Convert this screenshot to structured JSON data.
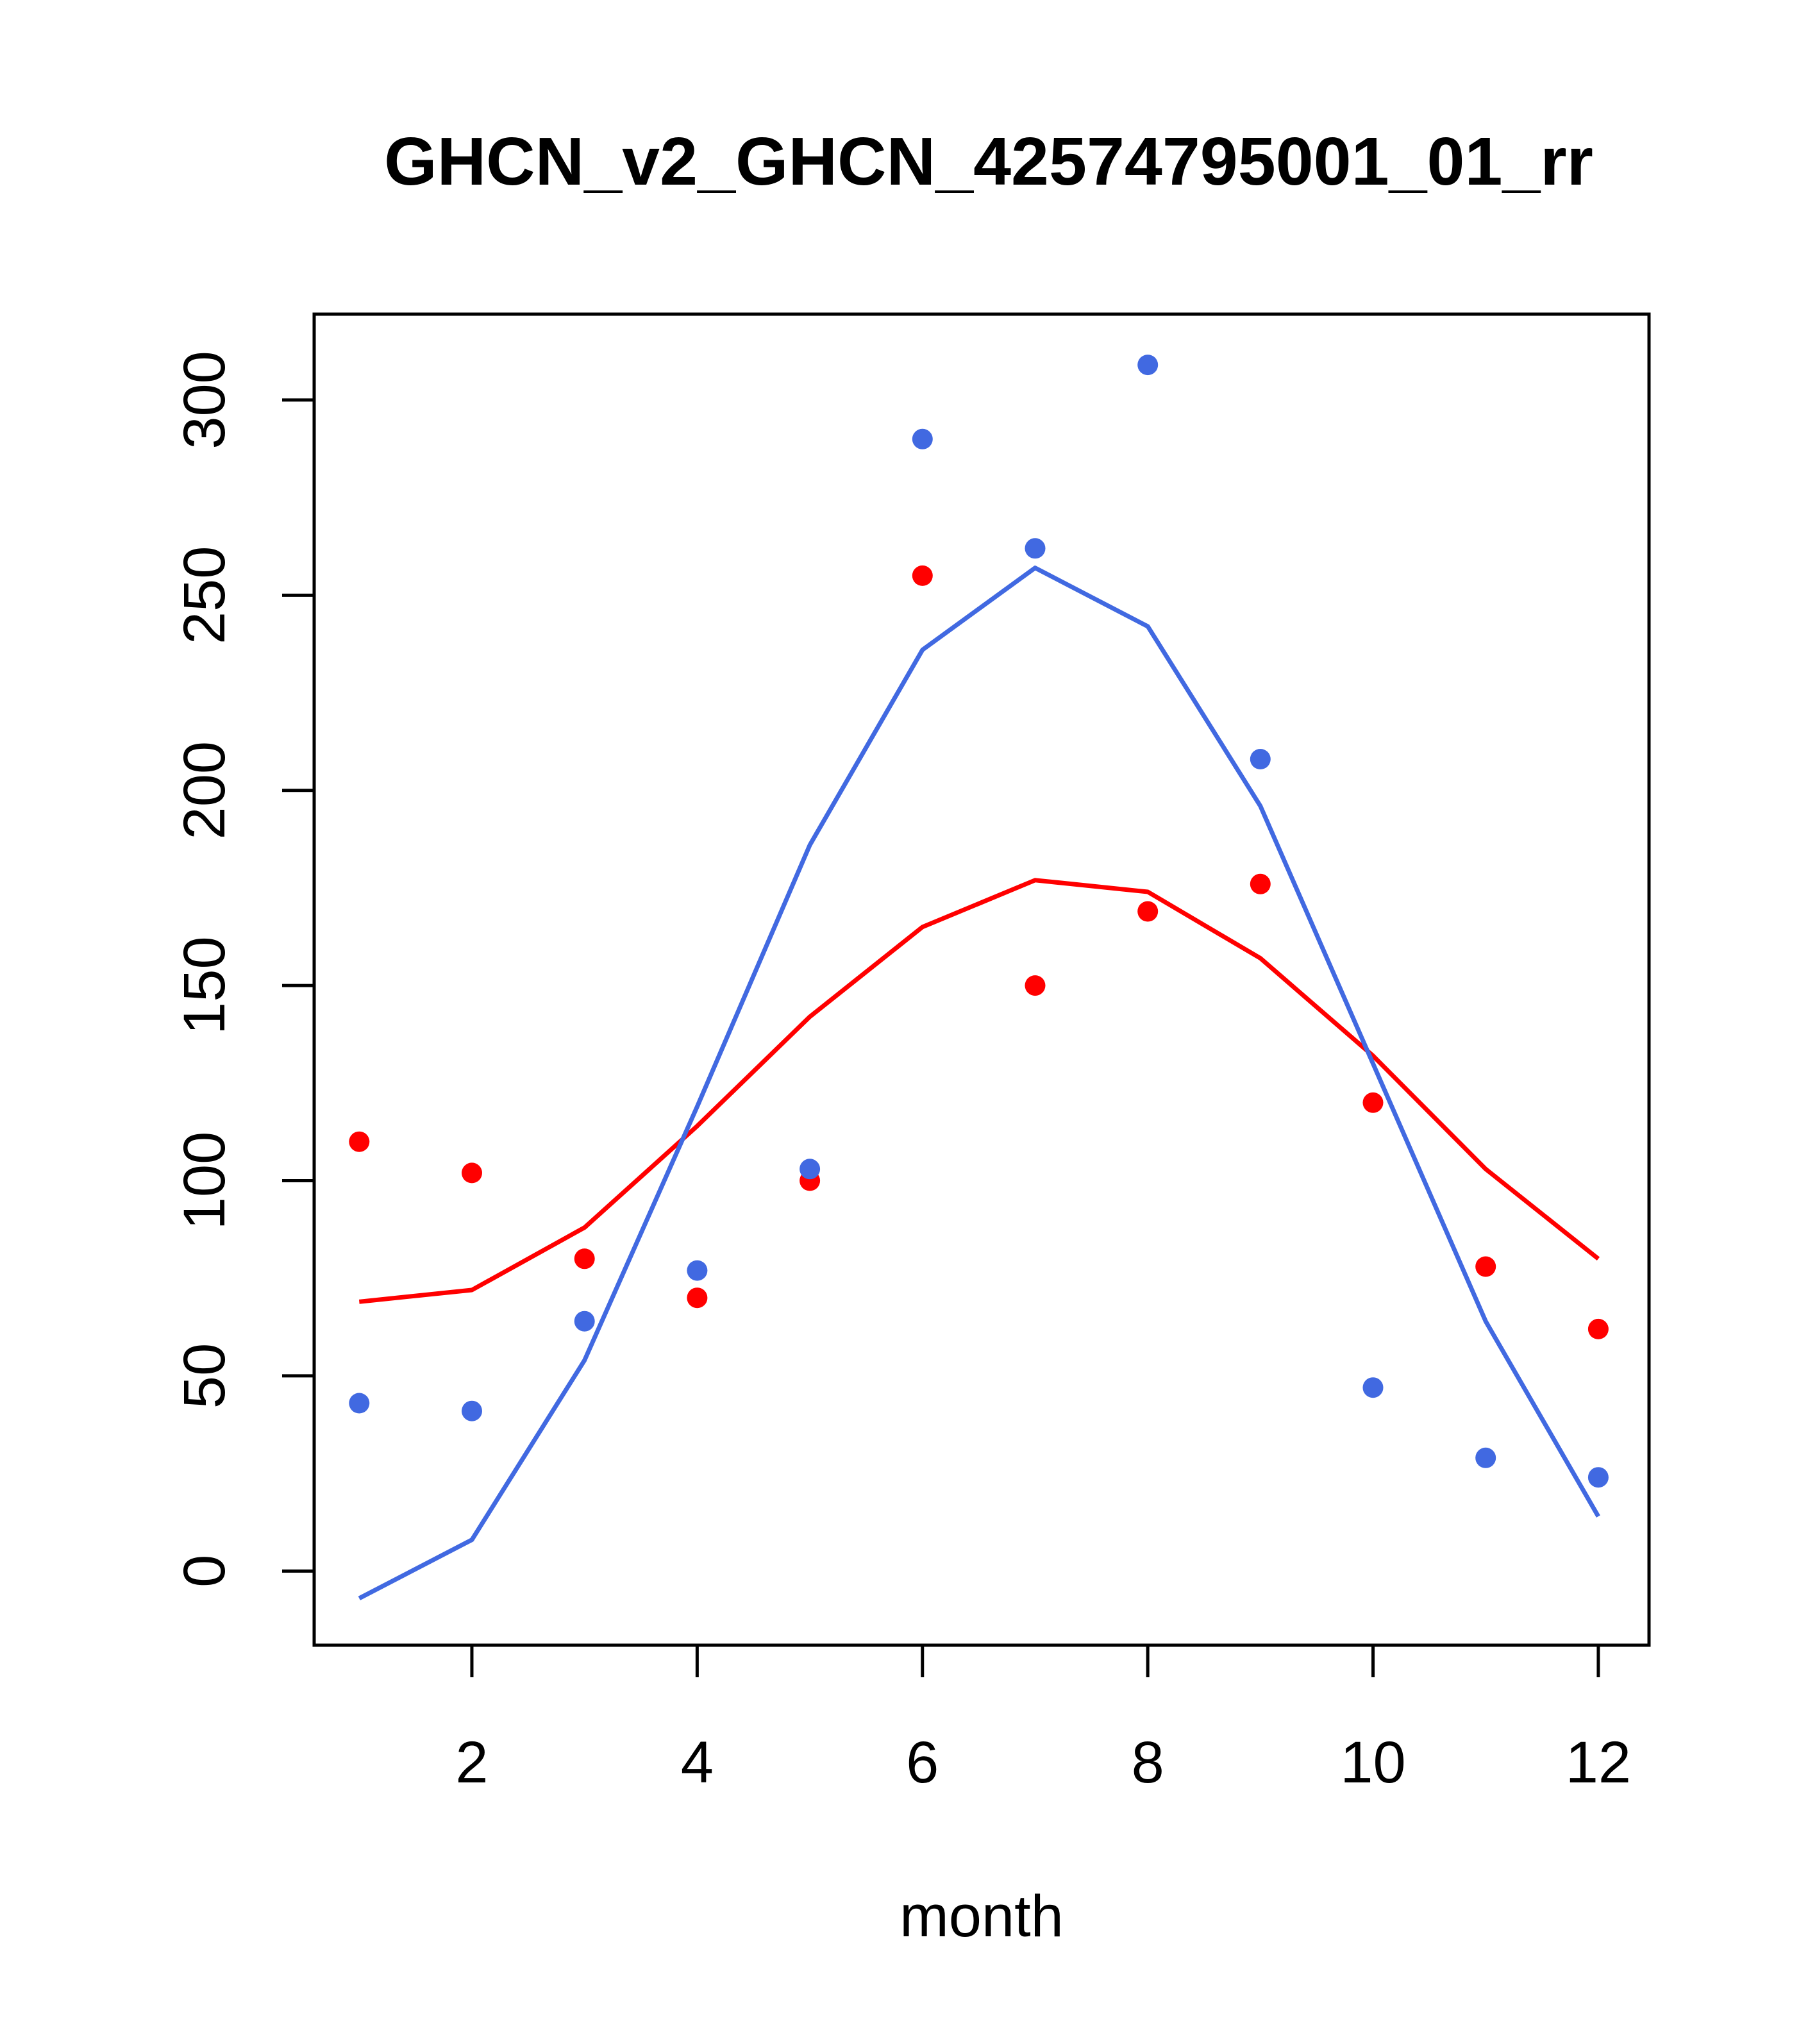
{
  "chart_data": {
    "type": "scatter",
    "title": "GHCN_v2_GHCN_42574795001_01_rr",
    "xlabel": "month",
    "ylabel": "",
    "xlim": [
      0.6,
      12.45
    ],
    "ylim": [
      -19,
      322
    ],
    "x_ticks": [
      2,
      4,
      6,
      8,
      10,
      12
    ],
    "y_ticks": [
      0,
      50,
      100,
      150,
      200,
      250,
      300
    ],
    "x_tick_labels": [
      "2",
      "4",
      "6",
      "8",
      "10",
      "12"
    ],
    "y_tick_labels": [
      "0",
      "50",
      "100",
      "150",
      "200",
      "250",
      "300"
    ],
    "grid": false,
    "legend": "none",
    "x": [
      1,
      2,
      3,
      4,
      5,
      6,
      7,
      8,
      9,
      10,
      11,
      12
    ],
    "series": [
      {
        "color": "#ff0000",
        "points": [
          110,
          102,
          80,
          70,
          100,
          255,
          150,
          169,
          176,
          120,
          78,
          62
        ],
        "line": [
          69,
          72,
          88,
          114,
          142,
          165,
          177,
          174,
          157,
          132,
          103,
          80
        ]
      },
      {
        "color": "#4169e1",
        "points": [
          43,
          41,
          64,
          77,
          103,
          290,
          262,
          309,
          208,
          47,
          29,
          24
        ],
        "line": [
          -7,
          8,
          54,
          119,
          186,
          236,
          257,
          242,
          196,
          130,
          64,
          14
        ]
      }
    ]
  }
}
